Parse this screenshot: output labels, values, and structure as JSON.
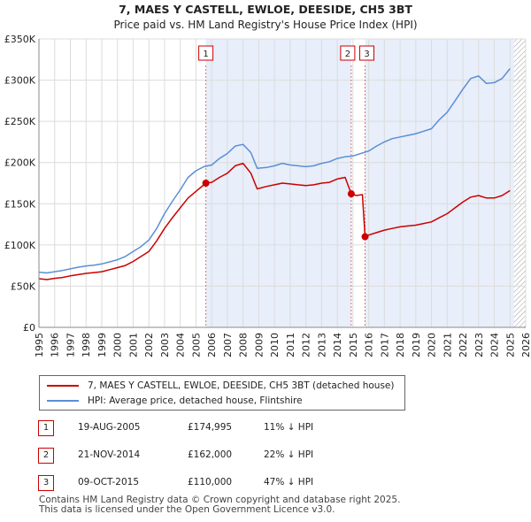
{
  "chart_data": {
    "type": "line",
    "title": "7, MAES Y CASTELL, EWLOE, DEESIDE, CH5 3BT",
    "subtitle": "Price paid vs. HM Land Registry's House Price Index (HPI)",
    "xlim": [
      1995,
      2026
    ],
    "ylim": [
      0,
      350000
    ],
    "x_ticks": [
      "1995",
      "1996",
      "1997",
      "1998",
      "1999",
      "2000",
      "2001",
      "2002",
      "2003",
      "2004",
      "2005",
      "2006",
      "2007",
      "2008",
      "2009",
      "2010",
      "2011",
      "2012",
      "2013",
      "2014",
      "2015",
      "2016",
      "2017",
      "2018",
      "2019",
      "2020",
      "2021",
      "2022",
      "2023",
      "2024",
      "2025",
      "2026"
    ],
    "y_ticks": [
      {
        "value": 0,
        "label": "£0"
      },
      {
        "value": 50000,
        "label": "£50K"
      },
      {
        "value": 100000,
        "label": "£100K"
      },
      {
        "value": 150000,
        "label": "£150K"
      },
      {
        "value": 200000,
        "label": "£200K"
      },
      {
        "value": 250000,
        "label": "£250K"
      },
      {
        "value": 300000,
        "label": "£300K"
      },
      {
        "value": 350000,
        "label": "£350K"
      }
    ],
    "grid": true,
    "shaded_ranges": [
      [
        2005.63,
        2014.89
      ],
      [
        2015.77,
        2025.25
      ]
    ],
    "hatched_range": [
      2025.25,
      2026
    ],
    "colors": {
      "property": "#cc0000",
      "hpi": "#5b8fd4",
      "shade": "#e8eefa",
      "marker_line": "#e07070"
    },
    "series": [
      {
        "name": "7, MAES Y CASTELL, EWLOE, DEESIDE, CH5 3BT (detached house)",
        "color": "#cc0000",
        "points": [
          [
            1995.0,
            59000
          ],
          [
            1995.5,
            58000
          ],
          [
            1996.0,
            59500
          ],
          [
            1996.5,
            60500
          ],
          [
            1997.0,
            62500
          ],
          [
            1997.5,
            64000
          ],
          [
            1998.0,
            65500
          ],
          [
            1998.5,
            66500
          ],
          [
            1999.0,
            67500
          ],
          [
            1999.5,
            70000
          ],
          [
            2000.0,
            72500
          ],
          [
            2000.5,
            75000
          ],
          [
            2001.0,
            80000
          ],
          [
            2001.5,
            86000
          ],
          [
            2002.0,
            92000
          ],
          [
            2002.5,
            105000
          ],
          [
            2003.0,
            120000
          ],
          [
            2003.5,
            133000
          ],
          [
            2004.0,
            145000
          ],
          [
            2004.5,
            157000
          ],
          [
            2005.0,
            165000
          ],
          [
            2005.63,
            174995
          ],
          [
            2006.0,
            176000
          ],
          [
            2006.5,
            182000
          ],
          [
            2007.0,
            187000
          ],
          [
            2007.5,
            196000
          ],
          [
            2008.0,
            199000
          ],
          [
            2008.5,
            187000
          ],
          [
            2008.9,
            168000
          ],
          [
            2009.5,
            171000
          ],
          [
            2010.0,
            173000
          ],
          [
            2010.5,
            175000
          ],
          [
            2011.0,
            174000
          ],
          [
            2011.5,
            173000
          ],
          [
            2012.0,
            172000
          ],
          [
            2012.5,
            173000
          ],
          [
            2013.0,
            175000
          ],
          [
            2013.5,
            176000
          ],
          [
            2014.0,
            180000
          ],
          [
            2014.5,
            182000
          ],
          [
            2014.89,
            162000
          ],
          [
            2015.2,
            160000
          ],
          [
            2015.6,
            161000
          ],
          [
            2015.77,
            110000
          ],
          [
            2016.0,
            112000
          ],
          [
            2016.5,
            115000
          ],
          [
            2017.0,
            118000
          ],
          [
            2017.5,
            120000
          ],
          [
            2018.0,
            122000
          ],
          [
            2018.5,
            123000
          ],
          [
            2019.0,
            124000
          ],
          [
            2019.5,
            126000
          ],
          [
            2020.0,
            128000
          ],
          [
            2020.5,
            133000
          ],
          [
            2021.0,
            138000
          ],
          [
            2021.5,
            145000
          ],
          [
            2022.0,
            152000
          ],
          [
            2022.5,
            158000
          ],
          [
            2023.0,
            160000
          ],
          [
            2023.5,
            157000
          ],
          [
            2024.0,
            157000
          ],
          [
            2024.5,
            160000
          ],
          [
            2025.0,
            166000
          ]
        ]
      },
      {
        "name": "HPI: Average price, detached house, Flintshire",
        "color": "#5b8fd4",
        "points": [
          [
            1995.0,
            67000
          ],
          [
            1995.5,
            66000
          ],
          [
            1996.0,
            67500
          ],
          [
            1996.5,
            69000
          ],
          [
            1997.0,
            71000
          ],
          [
            1997.5,
            73000
          ],
          [
            1998.0,
            74500
          ],
          [
            1998.5,
            75500
          ],
          [
            1999.0,
            77000
          ],
          [
            1999.5,
            79500
          ],
          [
            2000.0,
            82000
          ],
          [
            2000.5,
            86000
          ],
          [
            2001.0,
            92000
          ],
          [
            2001.5,
            98000
          ],
          [
            2002.0,
            106000
          ],
          [
            2002.5,
            120000
          ],
          [
            2003.0,
            138000
          ],
          [
            2003.5,
            153000
          ],
          [
            2004.0,
            167000
          ],
          [
            2004.5,
            182000
          ],
          [
            2005.0,
            190000
          ],
          [
            2005.5,
            195000
          ],
          [
            2006.0,
            197000
          ],
          [
            2006.5,
            205000
          ],
          [
            2007.0,
            211000
          ],
          [
            2007.5,
            220000
          ],
          [
            2008.0,
            222000
          ],
          [
            2008.5,
            212000
          ],
          [
            2008.9,
            193000
          ],
          [
            2009.5,
            194000
          ],
          [
            2010.0,
            196000
          ],
          [
            2010.5,
            199000
          ],
          [
            2011.0,
            197000
          ],
          [
            2011.5,
            196000
          ],
          [
            2012.0,
            195000
          ],
          [
            2012.5,
            196000
          ],
          [
            2013.0,
            199000
          ],
          [
            2013.5,
            201000
          ],
          [
            2014.0,
            205000
          ],
          [
            2014.5,
            207000
          ],
          [
            2015.0,
            208000
          ],
          [
            2015.5,
            211000
          ],
          [
            2016.0,
            214000
          ],
          [
            2016.5,
            220000
          ],
          [
            2017.0,
            225000
          ],
          [
            2017.5,
            229000
          ],
          [
            2018.0,
            231000
          ],
          [
            2018.5,
            233000
          ],
          [
            2019.0,
            235000
          ],
          [
            2019.5,
            238000
          ],
          [
            2020.0,
            241000
          ],
          [
            2020.5,
            252000
          ],
          [
            2021.0,
            261000
          ],
          [
            2021.5,
            275000
          ],
          [
            2022.0,
            289000
          ],
          [
            2022.5,
            302000
          ],
          [
            2023.0,
            305000
          ],
          [
            2023.5,
            296000
          ],
          [
            2024.0,
            297000
          ],
          [
            2024.5,
            302000
          ],
          [
            2025.0,
            314000
          ]
        ]
      }
    ],
    "sale_markers": [
      {
        "label": "1",
        "x": 2005.63,
        "y": 174995
      },
      {
        "label": "2",
        "x": 2014.89,
        "y": 162000
      },
      {
        "label": "3",
        "x": 2015.77,
        "y": 110000
      }
    ]
  },
  "legend": {
    "property_label": "7, MAES Y CASTELL, EWLOE, DEESIDE, CH5 3BT (detached house)",
    "hpi_label": "HPI: Average price, detached house, Flintshire"
  },
  "transactions": [
    {
      "num": "1",
      "date": "19-AUG-2005",
      "price": "£174,995",
      "hpi": "11% ↓ HPI"
    },
    {
      "num": "2",
      "date": "21-NOV-2014",
      "price": "£162,000",
      "hpi": "22% ↓ HPI"
    },
    {
      "num": "3",
      "date": "09-OCT-2015",
      "price": "£110,000",
      "hpi": "47% ↓ HPI"
    }
  ],
  "footer": {
    "line1": "Contains HM Land Registry data © Crown copyright and database right 2025.",
    "line2": "This data is licensed under the Open Government Licence v3.0."
  }
}
